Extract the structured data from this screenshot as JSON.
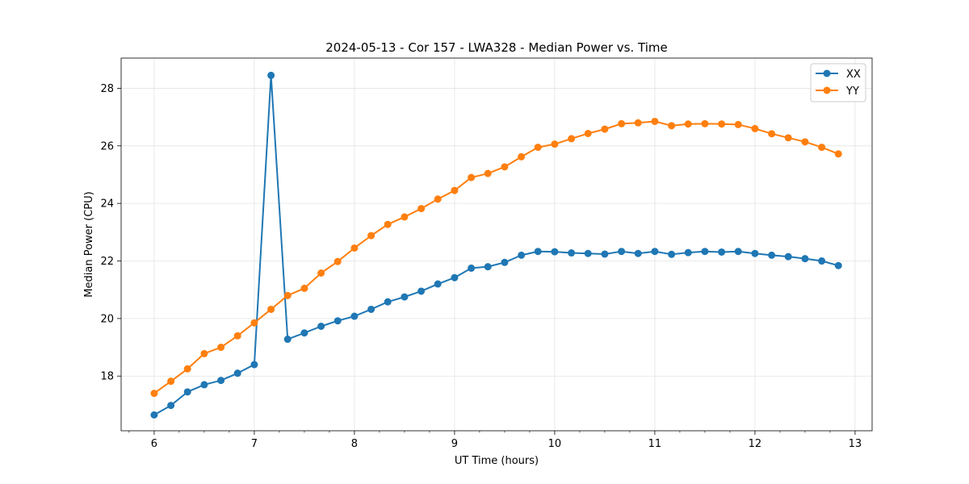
{
  "chart_data": {
    "type": "line",
    "title": "2024-05-13 - Cor 157 - LWA328 - Median Power vs. Time",
    "xlabel": "UT Time (hours)",
    "ylabel": "Median Power (CPU)",
    "xlim": [
      5.67,
      13.17
    ],
    "ylim": [
      16.1,
      29.05
    ],
    "x_ticks": [
      6,
      7,
      8,
      9,
      10,
      11,
      12,
      13
    ],
    "x_minor_step": 0.25,
    "y_ticks": [
      18,
      20,
      22,
      24,
      26,
      28
    ],
    "grid": true,
    "legend_position": "top-right",
    "x": [
      6.0,
      6.167,
      6.333,
      6.5,
      6.667,
      6.833,
      7.0,
      7.167,
      7.333,
      7.5,
      7.667,
      7.833,
      8.0,
      8.167,
      8.333,
      8.5,
      8.667,
      8.833,
      9.0,
      9.167,
      9.333,
      9.5,
      9.667,
      9.833,
      10.0,
      10.167,
      10.333,
      10.5,
      10.667,
      10.833,
      11.0,
      11.167,
      11.333,
      11.5,
      11.667,
      11.833,
      12.0,
      12.167,
      12.333,
      12.5,
      12.667,
      12.833
    ],
    "series": [
      {
        "name": "XX",
        "color": "#1f77b4",
        "values": [
          16.65,
          16.98,
          17.45,
          17.7,
          17.85,
          18.1,
          18.4,
          28.45,
          19.28,
          19.5,
          19.73,
          19.92,
          20.08,
          20.32,
          20.58,
          20.75,
          20.95,
          21.2,
          21.42,
          21.75,
          21.8,
          21.95,
          22.2,
          22.33,
          22.32,
          22.28,
          22.26,
          22.24,
          22.33,
          22.26,
          22.33,
          22.23,
          22.29,
          22.33,
          22.31,
          22.33,
          22.26,
          22.2,
          22.15,
          22.08,
          22.0,
          21.84
        ]
      },
      {
        "name": "YY",
        "color": "#ff7f0e",
        "values": [
          17.4,
          17.82,
          18.25,
          18.78,
          19.0,
          19.4,
          19.85,
          20.32,
          20.8,
          21.05,
          21.58,
          21.98,
          22.45,
          22.88,
          23.27,
          23.53,
          23.82,
          24.15,
          24.45,
          24.9,
          25.04,
          25.27,
          25.62,
          25.95,
          26.06,
          26.25,
          26.43,
          26.58,
          26.77,
          26.8,
          26.85,
          26.7,
          26.76,
          26.77,
          26.76,
          26.74,
          26.6,
          26.42,
          26.28,
          26.14,
          25.95,
          25.72
        ]
      }
    ]
  }
}
